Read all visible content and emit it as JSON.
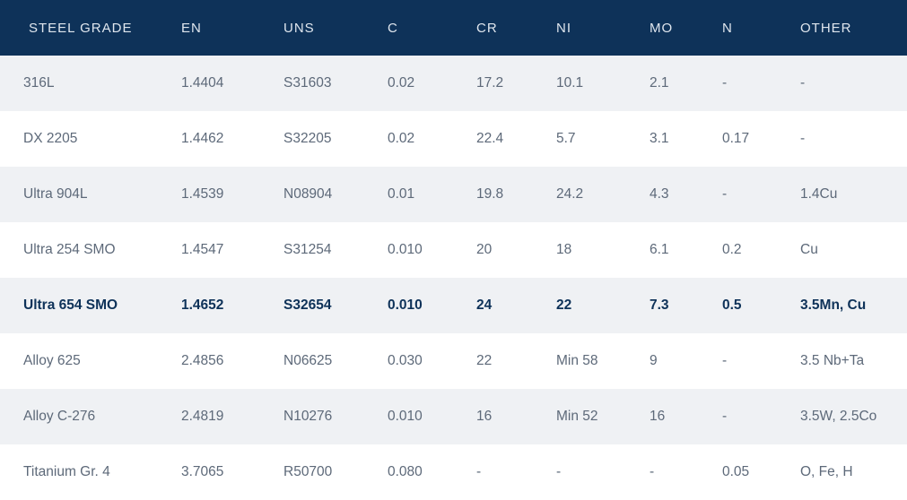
{
  "colors": {
    "header_bg": "#0e3259",
    "row_alt": "#eff1f4",
    "text": "#5d6979",
    "highlight_text": "#0e3259"
  },
  "table": {
    "headers": [
      "STEEL GRADE",
      "EN",
      "UNS",
      "C",
      "CR",
      "NI",
      "MO",
      "N",
      "OTHER"
    ],
    "rows": [
      [
        "316L",
        "1.4404",
        "S31603",
        "0.02",
        "17.2",
        "10.1",
        "2.1",
        "-",
        "-"
      ],
      [
        "DX 2205",
        "1.4462",
        "S32205",
        "0.02",
        "22.4",
        "5.7",
        "3.1",
        "0.17",
        "-"
      ],
      [
        "Ultra 904L",
        "1.4539",
        "N08904",
        "0.01",
        "19.8",
        "24.2",
        "4.3",
        "-",
        "1.4Cu"
      ],
      [
        "Ultra 254 SMO",
        "1.4547",
        "S31254",
        "0.010",
        "20",
        "18",
        "6.1",
        "0.2",
        "Cu"
      ],
      [
        "Ultra 654 SMO",
        "1.4652",
        "S32654",
        "0.010",
        "24",
        "22",
        "7.3",
        "0.5",
        "3.5Mn, Cu"
      ],
      [
        "Alloy 625",
        "2.4856",
        "N06625",
        "0.030",
        "22",
        "Min 58",
        "9",
        "-",
        "3.5 Nb+Ta"
      ],
      [
        "Alloy C-276",
        "2.4819",
        "N10276",
        "0.010",
        "16",
        "Min 52",
        "16",
        "-",
        "3.5W, 2.5Co"
      ],
      [
        "Titanium Gr. 4",
        "3.7065",
        "R50700",
        "0.080",
        "-",
        "-",
        "-",
        "0.05",
        "O, Fe, H"
      ]
    ],
    "highlighted_row": "Ultra 654 SMO"
  }
}
